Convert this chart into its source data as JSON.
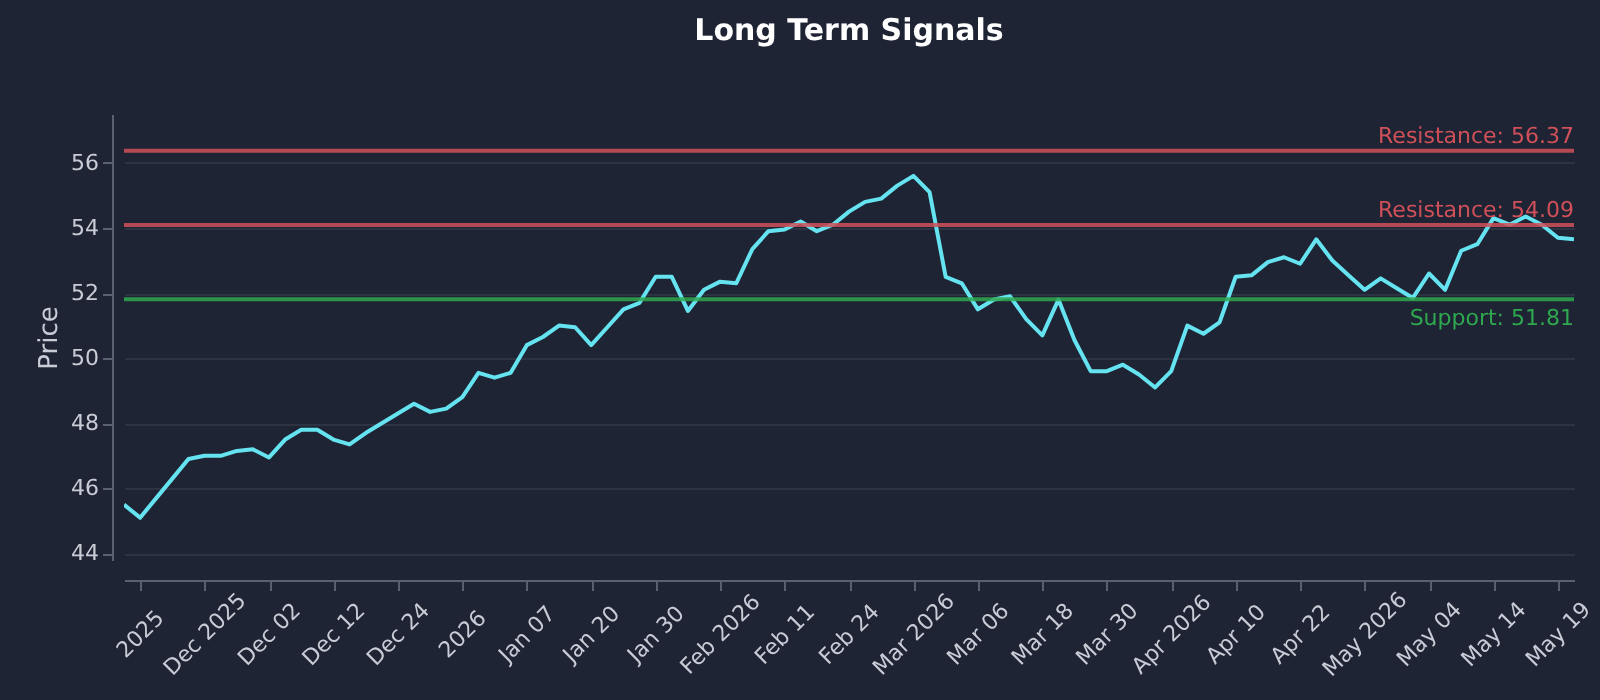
{
  "chart_data": {
    "type": "line",
    "title": "Long Term Signals",
    "ylabel": "Price",
    "categories": [
      null,
      "2025",
      null,
      null,
      null,
      "Dec 2025",
      null,
      null,
      null,
      "Dec 02",
      null,
      null,
      null,
      "Dec 12",
      null,
      null,
      null,
      "Dec 24",
      null,
      null,
      null,
      "2026",
      null,
      null,
      null,
      "Jan 07",
      null,
      null,
      null,
      "Jan 20",
      null,
      null,
      null,
      "Jan 30",
      null,
      null,
      null,
      "Feb 2026",
      null,
      null,
      null,
      "Feb 11",
      null,
      null,
      null,
      "Feb 24",
      null,
      null,
      null,
      "Mar 2026",
      null,
      null,
      null,
      "Mar 06",
      null,
      null,
      null,
      "Mar 18",
      null,
      null,
      null,
      "Mar 30",
      null,
      null,
      null,
      "Apr 2026",
      null,
      null,
      null,
      "Apr 10",
      null,
      null,
      null,
      "Apr 22",
      null,
      null,
      null,
      "May 2026",
      null,
      null,
      null,
      "May 04",
      null,
      null,
      null,
      "May 14",
      null,
      null,
      null,
      "May 19",
      null
    ],
    "series": [
      {
        "color": "#66e3f0",
        "values": [
          45.5,
          45.1,
          45.7,
          46.3,
          46.9,
          47.0,
          47.0,
          47.15,
          47.2,
          46.95,
          47.5,
          47.8,
          47.8,
          47.5,
          47.35,
          47.7,
          48.0,
          48.3,
          48.6,
          48.35,
          48.45,
          48.8,
          49.55,
          49.4,
          49.55,
          50.4,
          50.65,
          51.0,
          50.95,
          50.4,
          50.95,
          51.5,
          51.7,
          52.5,
          52.5,
          51.45,
          52.1,
          52.35,
          52.3,
          53.35,
          53.9,
          53.95,
          54.2,
          53.9,
          54.1,
          54.5,
          54.8,
          54.9,
          55.3,
          55.6,
          55.1,
          52.5,
          52.3,
          51.5,
          51.8,
          51.9,
          51.2,
          50.7,
          51.8,
          50.55,
          49.6,
          49.6,
          49.8,
          49.5,
          49.1,
          49.6,
          51.0,
          50.75,
          51.1,
          52.5,
          52.55,
          52.95,
          53.1,
          52.9,
          53.65,
          53.0,
          52.55,
          52.1,
          52.45,
          52.15,
          51.85,
          52.6,
          52.1,
          53.3,
          53.5,
          54.3,
          54.1,
          54.35,
          54.1,
          53.7,
          53.65
        ]
      }
    ],
    "ylim": [
      43.8,
      57.5
    ],
    "yticks": [
      44,
      46,
      48,
      50,
      52,
      54,
      56
    ],
    "grid": "y",
    "ref_lines": [
      {
        "axis": "y",
        "value": 56.37,
        "label": "Resistance: 56.37",
        "color": "#d0505a"
      },
      {
        "axis": "y",
        "value": 54.09,
        "label": "Resistance: 54.09",
        "color": "#d0505a"
      },
      {
        "axis": "y",
        "value": 51.81,
        "label": "Support: 51.81",
        "color": "#2ea84f"
      }
    ]
  }
}
